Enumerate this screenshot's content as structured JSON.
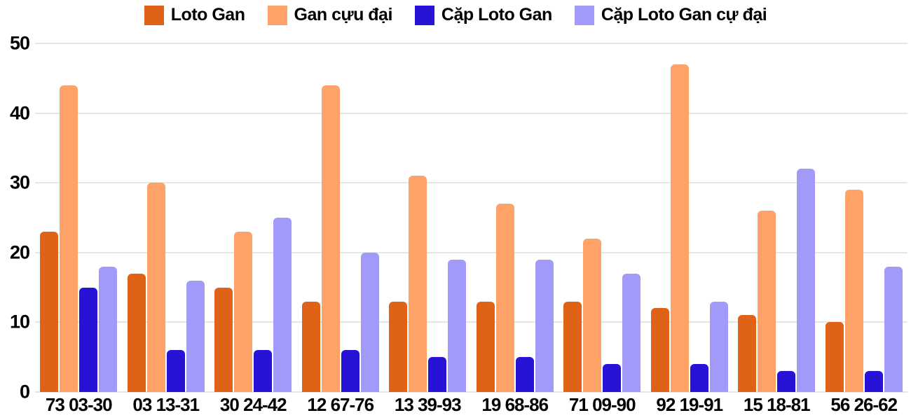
{
  "chart_data": {
    "type": "bar",
    "title": "",
    "categories": [
      "73 03-30",
      "03 13-31",
      "30 24-42",
      "12 67-76",
      "13 39-93",
      "19 68-86",
      "71 09-90",
      "92 19-91",
      "15 18-81",
      "56 26-62"
    ],
    "series": [
      {
        "name": "Loto Gan",
        "color": "#E06217",
        "values": [
          23,
          17,
          15,
          13,
          13,
          13,
          13,
          12,
          11,
          10
        ]
      },
      {
        "name": "Gan cựu đại",
        "color": "#FFA268",
        "values": [
          44,
          30,
          23,
          44,
          31,
          27,
          22,
          47,
          26,
          29
        ]
      },
      {
        "name": "Cặp Loto Gan",
        "color": "#2713D6",
        "values": [
          15,
          6,
          6,
          6,
          5,
          5,
          4,
          4,
          3,
          3
        ]
      },
      {
        "name": "Cặp Loto Gan cự đại",
        "color": "#A29AF8",
        "values": [
          18,
          16,
          25,
          20,
          19,
          19,
          17,
          13,
          32,
          18
        ]
      }
    ],
    "xlabel": "",
    "ylabel": "",
    "ylim": [
      0,
      50
    ],
    "yticks": [
      0,
      10,
      20,
      30,
      40,
      50
    ],
    "grid": true,
    "grid_color": "#E6E6E6",
    "text_color": "#000000",
    "background": "#FFFFFF",
    "legend_position": "top"
  }
}
